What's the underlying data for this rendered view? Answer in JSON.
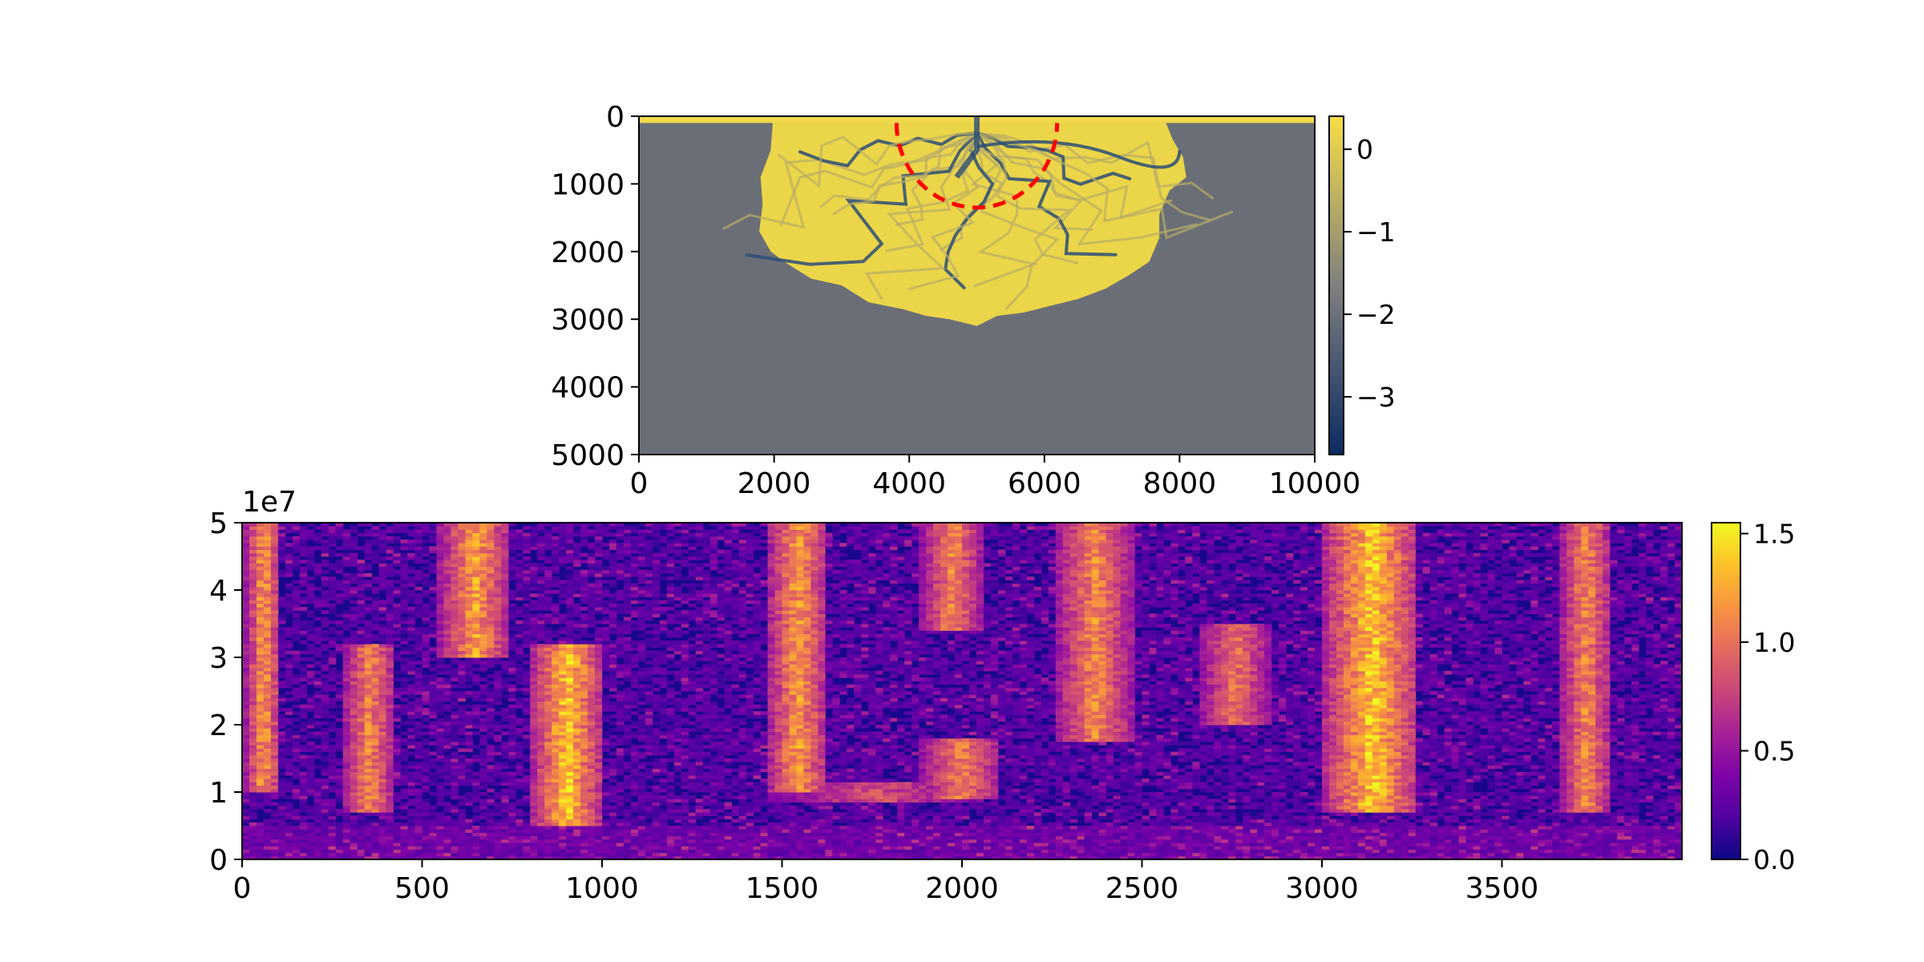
{
  "chart_data": [
    {
      "type": "heatmap",
      "description_free": true,
      "xlim": [
        0,
        10000
      ],
      "ylim": [
        5000,
        0
      ],
      "x_ticks": [
        "0",
        "2000",
        "4000",
        "6000",
        "8000",
        "10000"
      ],
      "y_ticks": [
        "0",
        "1000",
        "2000",
        "3000",
        "4000",
        "5000"
      ],
      "x_tick_values": [
        0,
        2000,
        4000,
        6000,
        8000,
        10000
      ],
      "y_tick_values": [
        0,
        1000,
        2000,
        3000,
        4000,
        5000
      ],
      "colorbar": {
        "range": [
          -3.7,
          0.4
        ],
        "ticks": [
          "0",
          "−1",
          "−2",
          "−3"
        ],
        "tick_values": [
          0,
          -1,
          -2,
          -3
        ],
        "colors": [
          "#0a2a62",
          "#7f7f7f",
          "#f6de45"
        ]
      },
      "deposit": {
        "apex": [
          5000,
          100
        ],
        "extent_y": [
          100,
          3100
        ],
        "extent_x": [
          1800,
          8100
        ],
        "fill_color": "#ebd548",
        "channel_color": "#2b4d78",
        "background_color": "#6a6f77",
        "inlet_strip_color": "#f0d84a"
      },
      "overlay_arc": {
        "center": [
          5000,
          100
        ],
        "radius": 1250,
        "style": "dashed",
        "color": "#ff0000"
      }
    },
    {
      "type": "heatmap",
      "xlim": [
        0,
        4000
      ],
      "ylim": [
        0,
        50000000.0
      ],
      "x_ticks": [
        "0",
        "500",
        "1000",
        "1500",
        "2000",
        "2500",
        "3000",
        "3500"
      ],
      "x_tick_values": [
        0,
        500,
        1000,
        1500,
        2000,
        2500,
        3000,
        3500
      ],
      "y_ticks": [
        "0",
        "1",
        "2",
        "3",
        "4",
        "5"
      ],
      "y_tick_values": [
        0,
        1,
        2,
        3,
        4,
        5
      ],
      "y_offset_label": "1e7",
      "colormap": "plasma",
      "colorbar": {
        "range": [
          0,
          1.55
        ],
        "ticks": [
          "0.0",
          "0.5",
          "1.0",
          "1.5"
        ],
        "tick_values": [
          0.0,
          0.5,
          1.0,
          1.5
        ]
      },
      "active_zones": [
        {
          "x": [
            0,
            100
          ],
          "y": [
            10000000.0,
            50000000.0
          ],
          "peak": 1.3
        },
        {
          "x": [
            270,
            420
          ],
          "y": [
            7000000.0,
            32000000.0
          ],
          "peak": 1.2
        },
        {
          "x": [
            540,
            740
          ],
          "y": [
            30000000.0,
            50000000.0
          ],
          "peak": 1.3
        },
        {
          "x": [
            800,
            990
          ],
          "y": [
            5000000.0,
            32000000.0
          ],
          "peak": 1.5
        },
        {
          "x": [
            1450,
            1620
          ],
          "y": [
            10000000.0,
            50000000.0
          ],
          "peak": 1.3
        },
        {
          "x": [
            1450,
            2050
          ],
          "y": [
            8500000.0,
            11500000.0
          ],
          "peak": 0.9
        },
        {
          "x": [
            1880,
            2050
          ],
          "y": [
            34000000.0,
            50000000.0
          ],
          "peak": 1.2
        },
        {
          "x": [
            1880,
            2100
          ],
          "y": [
            9000000.0,
            18000000.0
          ],
          "peak": 1.2
        },
        {
          "x": [
            2250,
            2470
          ],
          "y": [
            17500000.0,
            50000000.0
          ],
          "peak": 1.2
        },
        {
          "x": [
            2650,
            2850
          ],
          "y": [
            20000000.0,
            35000000.0
          ],
          "peak": 1.1
        },
        {
          "x": [
            3000,
            3260
          ],
          "y": [
            7000000.0,
            50000000.0
          ],
          "peak": 1.5
        },
        {
          "x": [
            3650,
            3800
          ],
          "y": [
            7000000.0,
            50000000.0
          ],
          "peak": 1.2
        }
      ]
    }
  ]
}
